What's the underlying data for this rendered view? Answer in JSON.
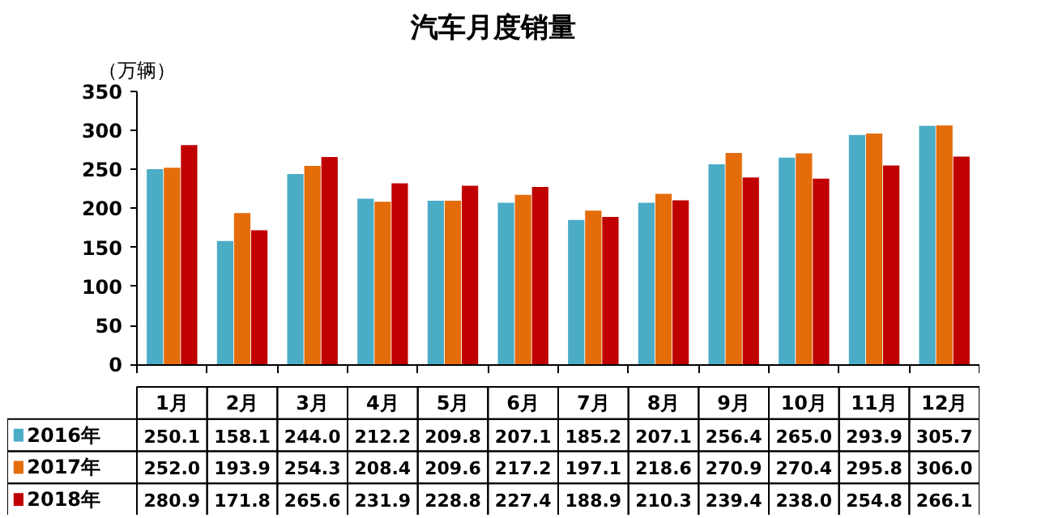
{
  "chart_data": {
    "type": "bar",
    "title": "汽车月度销量",
    "ylabel": "（万辆）",
    "categories": [
      "1月",
      "2月",
      "3月",
      "4月",
      "5月",
      "6月",
      "7月",
      "8月",
      "9月",
      "10月",
      "11月",
      "12月"
    ],
    "series": [
      {
        "name": "2016年",
        "color": "#4bacc6",
        "values": [
          250.1,
          158.1,
          244.0,
          212.2,
          209.8,
          207.1,
          185.2,
          207.1,
          256.4,
          265.0,
          293.9,
          305.7
        ],
        "value_labels": [
          "250.1",
          "158.1",
          "244.0",
          "212.2",
          "209.8",
          "207.1",
          "185.2",
          "207.1",
          "256.4",
          "265.0",
          "293.9",
          "305.7"
        ]
      },
      {
        "name": "2017年",
        "color": "#e46c0a",
        "values": [
          252.0,
          193.9,
          254.3,
          208.4,
          209.6,
          217.2,
          197.1,
          218.6,
          270.9,
          270.4,
          295.8,
          306.0
        ],
        "value_labels": [
          "252.0",
          "193.9",
          "254.3",
          "208.4",
          "209.6",
          "217.2",
          "197.1",
          "218.6",
          "270.9",
          "270.4",
          "295.8",
          "306.0"
        ]
      },
      {
        "name": "2018年",
        "color": "#c00000",
        "values": [
          280.9,
          171.8,
          265.6,
          231.9,
          228.8,
          227.4,
          188.9,
          210.3,
          239.4,
          238.0,
          254.8,
          266.1
        ],
        "value_labels": [
          "280.9",
          "171.8",
          "265.6",
          "231.9",
          "228.8",
          "227.4",
          "188.9",
          "210.3",
          "239.4",
          "238.0",
          "254.8",
          "266.1"
        ]
      }
    ],
    "ylim": [
      0,
      350
    ],
    "yticks": [
      0,
      50,
      100,
      150,
      200,
      250,
      300,
      350
    ],
    "grid": false,
    "legend": "bottom"
  }
}
